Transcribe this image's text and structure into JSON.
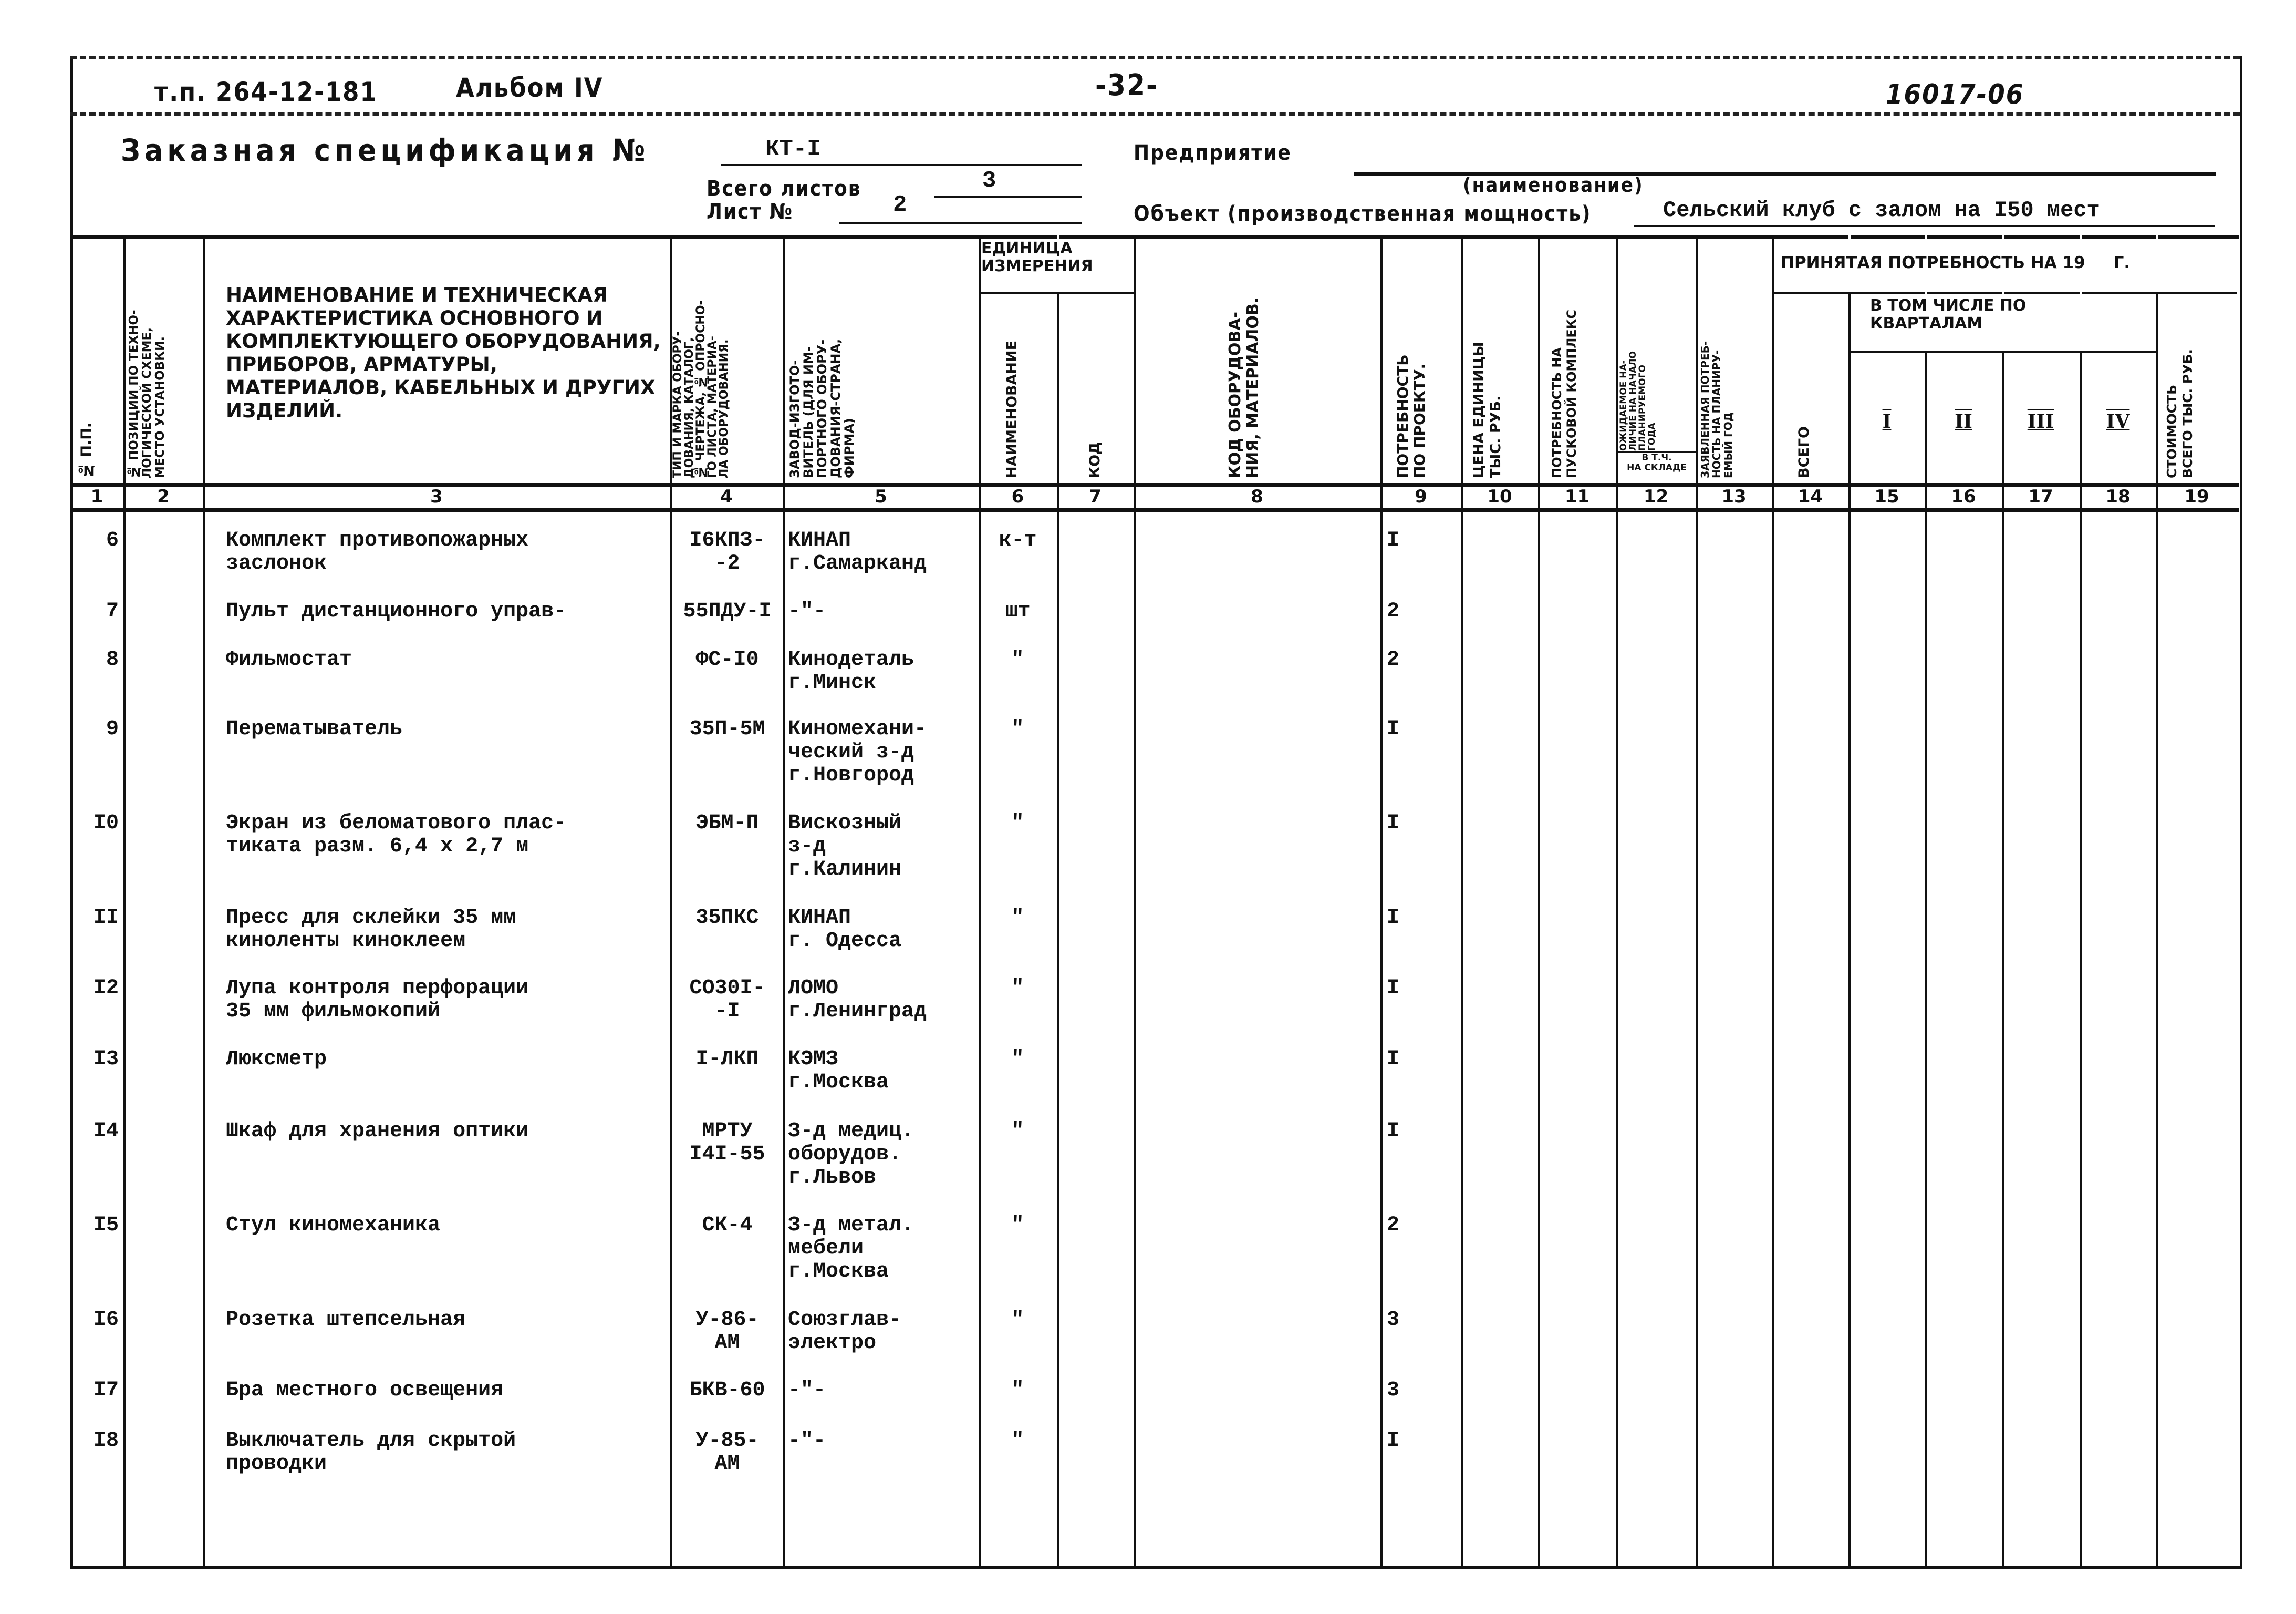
{
  "header": {
    "project": "т.п. 264-12-181",
    "album": "Альбом IV",
    "page": "-32-",
    "doc_code": "16017-06"
  },
  "spec": {
    "title": "Заказная спецификация №",
    "number": "КТ-I",
    "enterprise_label": "Предприятие",
    "enterprise_value": "",
    "name_hint": "(наименование)",
    "total_sheets_label": "Всего листов",
    "total_sheets": "3",
    "sheet_label": "Лист №",
    "sheet": "2",
    "object_label": "Объект (производственная мощность)",
    "object_value": "Сельский клуб с залом на I50 мест"
  },
  "columns": {
    "c1": "№ п.п.",
    "c2": "№ позиции по техно-\nлогической схеме,\nместо установки.",
    "c3": "Наименование и техническая характеристика основного и комплектующего оборудования, приборов, арматуры, материалов, кабельных и других изделий.",
    "c4": "Тип и марка обору-\nдования, каталог,\n№ чертежа, № опросно-\nго листа, материа-\nла оборудования.",
    "c5": "Завод-изгото-\nвитель (для им-\nпортного обору-\nдования-страна,\nфирма)",
    "unit_group": "Единица измерения",
    "c6": "Наименование",
    "c7": "Код",
    "c8": "Код оборудова-\nния, материалов.",
    "c9": "Потребность\nпо проекту.",
    "c10": "Цена единицы\nтыс. руб.",
    "c11": "Потребность на\nпусковой комплекс",
    "c12": "Ожидаемое на-\nличие на начало\nпланируемого\nгода",
    "c12_sub": "в т.ч.\nна складе",
    "c13": "Заявленная потреб-\nность на планиру-\nемый год",
    "accepted_group": "Принятая потребность на 19     г.",
    "c14": "Всего",
    "quarters_group": "В том числе по кварталам",
    "c15": "I",
    "c16": "II",
    "c17": "III",
    "c18": "IV",
    "c19": "Стоимость\nвсего тыс. руб.",
    "numbers": [
      "1",
      "2",
      "3",
      "4",
      "5",
      "6",
      "7",
      "8",
      "9",
      "10",
      "11",
      "12",
      "13",
      "14",
      "15",
      "16",
      "17",
      "18",
      "19"
    ]
  },
  "rows": [
    {
      "n": "6",
      "name": "Комплект противопожарных\nзаслонок",
      "type": "I6КПЗ-\n-2",
      "maker": "КИНАП\nг.Самарканд",
      "unit": "к-т",
      "qty": "I"
    },
    {
      "n": "7",
      "name": "Пульт дистанционного управ-",
      "type": "55ПДУ-I",
      "maker": "-\"-",
      "unit": "шт",
      "qty": "2"
    },
    {
      "n": "8",
      "name": "Фильмостат",
      "type": "ФС-I0",
      "maker": "Кинодеталь\nг.Минск",
      "unit": "\"",
      "qty": "2"
    },
    {
      "n": "9",
      "name": "Перематыватель",
      "type": "35П-5М",
      "maker": "Киномехани-\nческий з-д\nг.Новгород",
      "unit": "\"",
      "qty": "I"
    },
    {
      "n": "I0",
      "name": "Экран из беломатового плас-\nтиката разм. 6,4 х 2,7 м",
      "type": "ЭБМ-П",
      "maker": "Вискозный\nз-д\nг.Калинин",
      "unit": "\"",
      "qty": "I"
    },
    {
      "n": "II",
      "name": "Пресс для склейки 35 мм\nкиноленты киноклеем",
      "type": "35ПКС",
      "maker": "КИНАП\nг. Одесса",
      "unit": "\"",
      "qty": "I"
    },
    {
      "n": "I2",
      "name": "Лупа контроля перфорации\n35 мм фильмокопий",
      "type": "СО30I-\n-I",
      "maker": "ЛОМО\nг.Ленинград",
      "unit": "\"",
      "qty": "I"
    },
    {
      "n": "I3",
      "name": "Люксметр",
      "type": "I-ЛКП",
      "maker": "КЭМЗ\nг.Москва",
      "unit": "\"",
      "qty": "I"
    },
    {
      "n": "I4",
      "name": "Шкаф для хранения оптики",
      "type": "МРТУ\nI4I-55",
      "maker": "З-д медиц.\nоборудов.\nг.Львов",
      "unit": "\"",
      "qty": "I"
    },
    {
      "n": "I5",
      "name": "Стул киномеханика",
      "type": "СК-4",
      "maker": "З-д метал.\nмебели\nг.Москва",
      "unit": "\"",
      "qty": "2"
    },
    {
      "n": "I6",
      "name": "Розетка штепсельная",
      "type": "У-86-\nАМ",
      "maker": "Союзглав-\nэлектро",
      "unit": "\"",
      "qty": "3"
    },
    {
      "n": "I7",
      "name": "Бра местного освещения",
      "type": "БКВ-60",
      "maker": "-\"-",
      "unit": "\"",
      "qty": "3"
    },
    {
      "n": "I8",
      "name": "Выключатель для скрытой\nпроводки",
      "type": "У-85-\nАМ",
      "maker": "-\"-",
      "unit": "\"",
      "qty": "I"
    }
  ]
}
